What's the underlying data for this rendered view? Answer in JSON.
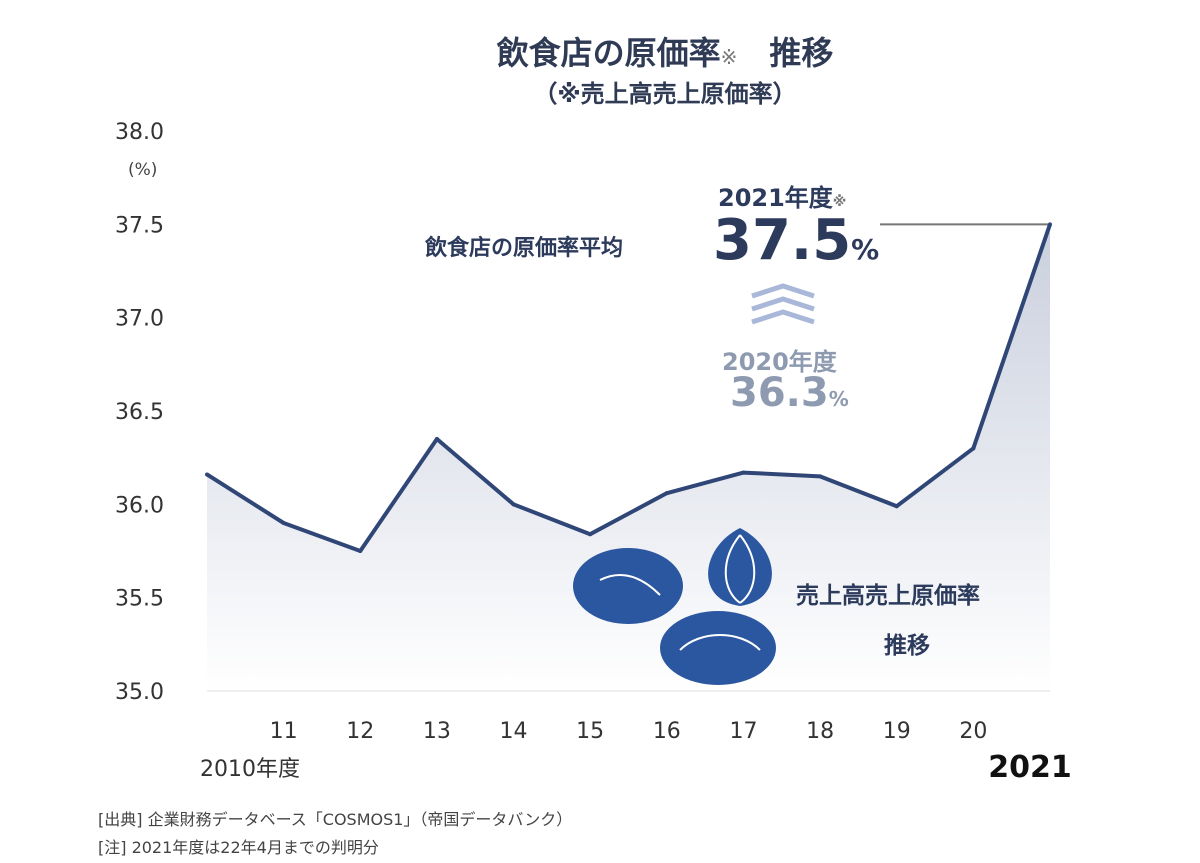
{
  "chart_data": {
    "type": "area",
    "title": "飲食店の原価率",
    "title_mark": "※",
    "title_suffix": "推移",
    "subtitle": "（※売上高売上原価率）",
    "ylabel": "(%)",
    "ylim": [
      35.0,
      38.0
    ],
    "yticks": [
      "38.0",
      "37.5",
      "37.0",
      "36.5",
      "36.0",
      "35.5",
      "35.0"
    ],
    "categories": [
      "2010年度",
      "11",
      "12",
      "13",
      "14",
      "15",
      "16",
      "17",
      "18",
      "19",
      "20",
      "2021"
    ],
    "x": [
      2010,
      2011,
      2012,
      2013,
      2014,
      2015,
      2016,
      2017,
      2018,
      2019,
      2020,
      2021
    ],
    "values": [
      36.16,
      35.9,
      35.75,
      36.35,
      36.0,
      35.84,
      36.06,
      36.17,
      36.15,
      35.99,
      36.3,
      37.5
    ],
    "grid": false,
    "colors": {
      "line": "#2f4677",
      "fill_top": "#c9cfdd",
      "text": "#2c3a5c",
      "muted": "#8e9ab0"
    },
    "annotations": {
      "avg_label": "飲食店の原価率平均",
      "y2021_label": "2021年度",
      "y2021_mark": "※",
      "y2021_value": "37.5",
      "y2021_unit": "%",
      "y2020_label": "2020年度",
      "y2020_value": "36.3",
      "y2020_unit": "%",
      "series_label_1": "売上高売上原価率",
      "series_label_2": "推移"
    }
  },
  "notes": {
    "source": "[出典] 企業財務データベース「COSMOS1」（帝国データバンク）",
    "note": "[注] 2021年度は22年4月までの判明分"
  }
}
